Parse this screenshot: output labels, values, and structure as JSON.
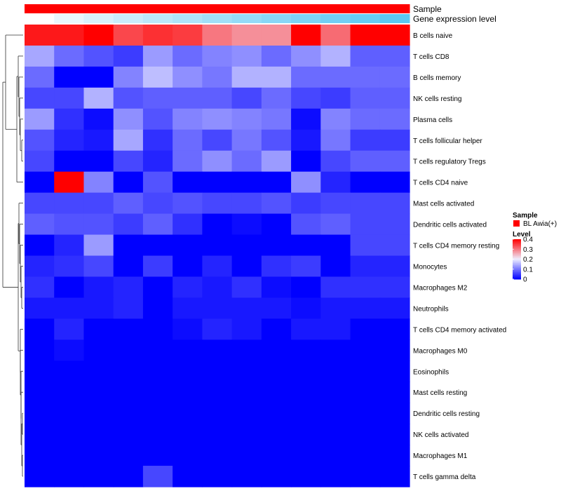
{
  "chart_data": {
    "type": "heatmap",
    "title": "",
    "annotation_tracks": [
      {
        "name": "Sample",
        "color": "#ff0000"
      },
      {
        "name": "Gene expression level",
        "gradient_colors": [
          "#ffffff",
          "#5bc8f2"
        ]
      }
    ],
    "rows": [
      "B cells naive",
      "T cells CD8",
      "B cells memory",
      "NK cells resting",
      "Plasma cells",
      "T cells follicular helper",
      "T cells regulatory  Tregs",
      "T cells CD4 naive",
      "Mast cells activated",
      "Dendritic cells activated",
      "T cells CD4 memory resting",
      "Monocytes",
      "Macrophages M2",
      "Neutrophils",
      "T cells CD4 memory activated",
      "Macrophages M0",
      "Eosinophils",
      "Mast cells resting",
      "Dendritic cells resting",
      "NK cells activated",
      "Macrophages M1",
      "T cells gamma delta"
    ],
    "n_samples": 13,
    "values": [
      [
        0.38,
        0.38,
        0.43,
        0.34,
        0.36,
        0.35,
        0.3,
        0.28,
        0.28,
        0.43,
        0.31,
        0.43,
        0.43
      ],
      [
        0.14,
        0.09,
        0.07,
        0.05,
        0.13,
        0.09,
        0.11,
        0.12,
        0.09,
        0.12,
        0.15,
        0.08,
        0.08
      ],
      [
        0.09,
        0.0,
        0.0,
        0.11,
        0.16,
        0.12,
        0.1,
        0.15,
        0.15,
        0.09,
        0.09,
        0.09,
        0.09
      ],
      [
        0.06,
        0.06,
        0.15,
        0.07,
        0.08,
        0.08,
        0.08,
        0.06,
        0.09,
        0.06,
        0.05,
        0.08,
        0.08
      ],
      [
        0.13,
        0.04,
        0.01,
        0.12,
        0.07,
        0.11,
        0.12,
        0.11,
        0.1,
        0.01,
        0.11,
        0.09,
        0.09
      ],
      [
        0.07,
        0.03,
        0.02,
        0.14,
        0.04,
        0.09,
        0.06,
        0.1,
        0.07,
        0.02,
        0.1,
        0.05,
        0.05
      ],
      [
        0.06,
        0.0,
        0.0,
        0.06,
        0.03,
        0.09,
        0.12,
        0.09,
        0.13,
        0.0,
        0.06,
        0.08,
        0.08
      ],
      [
        0.0,
        0.4,
        0.11,
        0.0,
        0.07,
        0.0,
        0.0,
        0.0,
        0.0,
        0.12,
        0.03,
        0.0,
        0.0
      ],
      [
        0.06,
        0.06,
        0.06,
        0.08,
        0.06,
        0.07,
        0.06,
        0.06,
        0.07,
        0.05,
        0.06,
        0.06,
        0.06
      ],
      [
        0.08,
        0.07,
        0.07,
        0.05,
        0.08,
        0.04,
        0.0,
        0.01,
        0.0,
        0.07,
        0.08,
        0.06,
        0.06
      ],
      [
        0.0,
        0.03,
        0.13,
        0.0,
        0.0,
        0.0,
        0.0,
        0.0,
        0.0,
        0.0,
        0.0,
        0.06,
        0.06
      ],
      [
        0.03,
        0.04,
        0.06,
        0.0,
        0.05,
        0.0,
        0.03,
        0.0,
        0.04,
        0.05,
        0.0,
        0.03,
        0.03
      ],
      [
        0.04,
        0.0,
        0.02,
        0.03,
        0.0,
        0.03,
        0.02,
        0.04,
        0.01,
        0.0,
        0.04,
        0.04,
        0.04
      ],
      [
        0.02,
        0.02,
        0.02,
        0.03,
        0.0,
        0.02,
        0.02,
        0.02,
        0.02,
        0.01,
        0.02,
        0.02,
        0.02
      ],
      [
        0.0,
        0.03,
        0.0,
        0.0,
        0.0,
        0.01,
        0.03,
        0.02,
        0.0,
        0.02,
        0.02,
        0.0,
        0.0
      ],
      [
        0.0,
        0.01,
        0.0,
        0.0,
        0.0,
        0.0,
        0.0,
        0.0,
        0.0,
        0.0,
        0.0,
        0.0,
        0.0
      ],
      [
        0.0,
        0.0,
        0.0,
        0.0,
        0.0,
        0.0,
        0.0,
        0.0,
        0.0,
        0.0,
        0.0,
        0.0,
        0.0
      ],
      [
        0.0,
        0.0,
        0.0,
        0.0,
        0.0,
        0.0,
        0.0,
        0.0,
        0.0,
        0.0,
        0.0,
        0.0,
        0.0
      ],
      [
        0.0,
        0.0,
        0.0,
        0.0,
        0.0,
        0.0,
        0.0,
        0.0,
        0.0,
        0.0,
        0.0,
        0.0,
        0.0
      ],
      [
        0.0,
        0.0,
        0.0,
        0.0,
        0.0,
        0.0,
        0.0,
        0.0,
        0.0,
        0.0,
        0.0,
        0.0,
        0.0
      ],
      [
        0.0,
        0.0,
        0.0,
        0.0,
        0.0,
        0.0,
        0.0,
        0.0,
        0.0,
        0.0,
        0.0,
        0.0,
        0.0
      ],
      [
        0.0,
        0.0,
        0.0,
        0.0,
        0.06,
        0.0,
        0.0,
        0.0,
        0.0,
        0.0,
        0.0,
        0.0,
        0.0
      ]
    ],
    "color_scale": {
      "range": [
        0,
        0.4
      ],
      "low": "#0000ff",
      "mid": "#eeeeff",
      "high": "#ff0000",
      "mid_value": 0.2
    },
    "legend": {
      "sample_title": "Sample",
      "sample_entry": "BL Awia(+)",
      "sample_color": "#ff0000",
      "level_title": "Level",
      "level_ticks": [
        "0.4",
        "0.3",
        "0.2",
        "0.1",
        "0"
      ],
      "level_tick_values": [
        0.4,
        0.3,
        0.2,
        0.1,
        0
      ]
    },
    "row_dendrogram": true,
    "legend_position": "right"
  }
}
